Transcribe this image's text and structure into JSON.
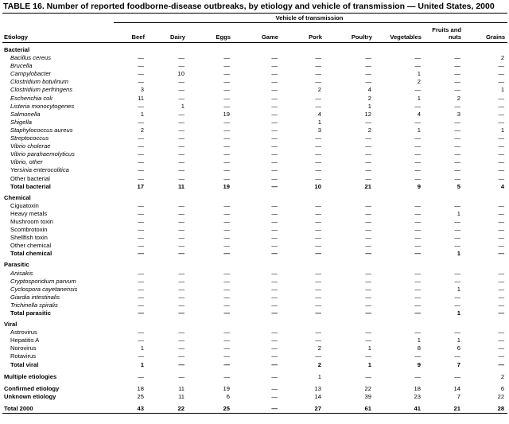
{
  "header": {
    "title": "TABLE 16. Number of reported foodborne-disease outbreaks, by etiology and vehicle of transmission — United States, 2000"
  },
  "table": {
    "group_header": "Vehicle of transmission",
    "columns": [
      "Etiology",
      "Beef",
      "Dairy",
      "Eggs",
      "Game",
      "Pork",
      "Poultry",
      "Vegetables",
      "Fruits and nuts",
      "Grains"
    ],
    "sections": [
      {
        "label": "Bacterial",
        "rows": [
          {
            "label": "Bacillus cereus",
            "italic": true,
            "cells": [
              "—",
              "—",
              "—",
              "—",
              "—",
              "—",
              "—",
              "—",
              "2"
            ]
          },
          {
            "label": "Brucella",
            "italic": true,
            "cells": [
              "—",
              "—",
              "—",
              "—",
              "—",
              "—",
              "—",
              "—",
              "—"
            ]
          },
          {
            "label": "Campylobacter",
            "italic": true,
            "cells": [
              "—",
              "10",
              "—",
              "—",
              "—",
              "—",
              "1",
              "—",
              "—"
            ]
          },
          {
            "label": "Clostridium botulinum",
            "italic": true,
            "cells": [
              "—",
              "—",
              "—",
              "—",
              "—",
              "—",
              "2",
              "—",
              "—"
            ]
          },
          {
            "label": "Clostridium perfringens",
            "italic": true,
            "cells": [
              "3",
              "—",
              "—",
              "—",
              "2",
              "4",
              "—",
              "—",
              "1"
            ]
          },
          {
            "label": "Escherichia coli",
            "italic": true,
            "cells": [
              "11",
              "—",
              "—",
              "—",
              "—",
              "2",
              "1",
              "2",
              "—"
            ]
          },
          {
            "label": "Listeria monocytogenes",
            "italic": true,
            "cells": [
              "—",
              "1",
              "—",
              "—",
              "—",
              "1",
              "—",
              "—",
              "—"
            ]
          },
          {
            "label": "Salmonella",
            "italic": true,
            "cells": [
              "1",
              "—",
              "19",
              "—",
              "4",
              "12",
              "4",
              "3",
              "—"
            ]
          },
          {
            "label": "Shigella",
            "italic": true,
            "cells": [
              "—",
              "—",
              "—",
              "—",
              "1",
              "—",
              "—",
              "—",
              "—"
            ]
          },
          {
            "label": "Staphylococcus aureus",
            "italic": true,
            "cells": [
              "2",
              "—",
              "—",
              "—",
              "3",
              "2",
              "1",
              "—",
              "1"
            ]
          },
          {
            "label": "Streptococcus",
            "italic": true,
            "cells": [
              "—",
              "—",
              "—",
              "—",
              "—",
              "—",
              "—",
              "—",
              "—"
            ]
          },
          {
            "label": "Vibrio cholerae",
            "italic": true,
            "cells": [
              "—",
              "—",
              "—",
              "—",
              "—",
              "—",
              "—",
              "—",
              "—"
            ]
          },
          {
            "label": "Vibrio parahaemolyticus",
            "italic": true,
            "cells": [
              "—",
              "—",
              "—",
              "—",
              "—",
              "—",
              "—",
              "—",
              "—"
            ]
          },
          {
            "label": "Vibrio, other",
            "italic": true,
            "cells": [
              "—",
              "—",
              "—",
              "—",
              "—",
              "—",
              "—",
              "—",
              "—"
            ]
          },
          {
            "label": "Yersinia enterocolitica",
            "italic": true,
            "cells": [
              "—",
              "—",
              "—",
              "—",
              "—",
              "—",
              "—",
              "—",
              "—"
            ]
          },
          {
            "label": "Other bacterial",
            "cells": [
              "—",
              "—",
              "—",
              "—",
              "—",
              "—",
              "—",
              "—",
              "—"
            ]
          },
          {
            "label": "Total bacterial",
            "total": true,
            "cells": [
              "17",
              "11",
              "19",
              "—",
              "10",
              "21",
              "9",
              "5",
              "4"
            ]
          }
        ]
      },
      {
        "label": "Chemical",
        "rows": [
          {
            "label": "Ciguatoxin",
            "cells": [
              "—",
              "—",
              "—",
              "—",
              "—",
              "—",
              "—",
              "—",
              "—"
            ]
          },
          {
            "label": "Heavy metals",
            "cells": [
              "—",
              "—",
              "—",
              "—",
              "—",
              "—",
              "—",
              "1",
              "—"
            ]
          },
          {
            "label": "Mushroom toxin",
            "cells": [
              "—",
              "—",
              "—",
              "—",
              "—",
              "—",
              "—",
              "—",
              "—"
            ]
          },
          {
            "label": "Scombrotoxin",
            "cells": [
              "—",
              "—",
              "—",
              "—",
              "—",
              "—",
              "—",
              "—",
              "—"
            ]
          },
          {
            "label": "Shellfish toxin",
            "cells": [
              "—",
              "—",
              "—",
              "—",
              "—",
              "—",
              "—",
              "—",
              "—"
            ]
          },
          {
            "label": "Other chemical",
            "cells": [
              "—",
              "—",
              "—",
              "—",
              "—",
              "—",
              "—",
              "—",
              "—"
            ]
          },
          {
            "label": "Total chemical",
            "total": true,
            "cells": [
              "—",
              "—",
              "—",
              "—",
              "—",
              "—",
              "—",
              "1",
              "—"
            ]
          }
        ]
      },
      {
        "label": "Parasitic",
        "rows": [
          {
            "label": "Anisakis",
            "italic": true,
            "cells": [
              "—",
              "—",
              "—",
              "—",
              "—",
              "—",
              "—",
              "—",
              "—"
            ]
          },
          {
            "label": "Cryptosporidium parvum",
            "italic": true,
            "cells": [
              "—",
              "—",
              "—",
              "—",
              "—",
              "—",
              "—",
              "—",
              "—"
            ]
          },
          {
            "label": "Cyclospora cayetanensis",
            "italic": true,
            "cells": [
              "—",
              "—",
              "—",
              "—",
              "—",
              "—",
              "—",
              "1",
              "—"
            ]
          },
          {
            "label": "Giardia intestinalis",
            "italic": true,
            "cells": [
              "—",
              "—",
              "—",
              "—",
              "—",
              "—",
              "—",
              "—",
              "—"
            ]
          },
          {
            "label": "Trichinella spiralis",
            "italic": true,
            "cells": [
              "—",
              "—",
              "—",
              "—",
              "—",
              "—",
              "—",
              "—",
              "—"
            ]
          },
          {
            "label": "Total parasitic",
            "total": true,
            "cells": [
              "—",
              "—",
              "—",
              "—",
              "—",
              "—",
              "—",
              "1",
              "—"
            ]
          }
        ]
      },
      {
        "label": "Viral",
        "rows": [
          {
            "label": "Astrovirus",
            "cells": [
              "—",
              "—",
              "—",
              "—",
              "—",
              "—",
              "—",
              "—",
              "—"
            ]
          },
          {
            "label": "Hepatitis A",
            "cells": [
              "—",
              "—",
              "—",
              "—",
              "—",
              "—",
              "1",
              "1",
              "—"
            ]
          },
          {
            "label": "Norovirus",
            "cells": [
              "1",
              "—",
              "—",
              "—",
              "2",
              "1",
              "8",
              "6",
              "—"
            ]
          },
          {
            "label": "Rotavirus",
            "cells": [
              "—",
              "—",
              "—",
              "—",
              "—",
              "—",
              "—",
              "—",
              "—"
            ]
          },
          {
            "label": "Total viral",
            "total": true,
            "cells": [
              "1",
              "—",
              "—",
              "—",
              "2",
              "1",
              "9",
              "7",
              "—"
            ]
          }
        ]
      }
    ],
    "summary_rows": [
      {
        "label": "Multiple etiologies",
        "cells": [
          "—",
          "—",
          "—",
          "—",
          "1",
          "—",
          "—",
          "—",
          "2"
        ]
      },
      {
        "label": "Confirmed etiology",
        "cells": [
          "18",
          "11",
          "19",
          "—",
          "13",
          "22",
          "18",
          "14",
          "6"
        ]
      },
      {
        "label": "Unknown etiology",
        "cells": [
          "25",
          "11",
          "6",
          "—",
          "14",
          "39",
          "23",
          "7",
          "22"
        ]
      },
      {
        "label": "Total 2000",
        "total": true,
        "cells": [
          "43",
          "22",
          "25",
          "—",
          "27",
          "61",
          "41",
          "21",
          "28"
        ]
      }
    ]
  }
}
